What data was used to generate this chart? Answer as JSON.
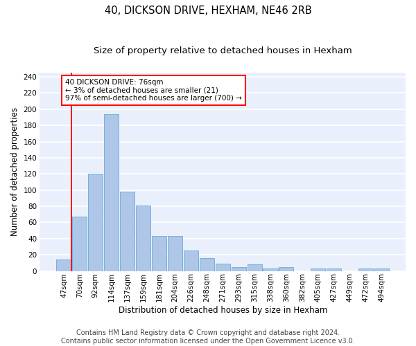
{
  "title1": "40, DICKSON DRIVE, HEXHAM, NE46 2RB",
  "title2": "Size of property relative to detached houses in Hexham",
  "xlabel": "Distribution of detached houses by size in Hexham",
  "ylabel": "Number of detached properties",
  "categories": [
    "47sqm",
    "70sqm",
    "92sqm",
    "114sqm",
    "137sqm",
    "159sqm",
    "181sqm",
    "204sqm",
    "226sqm",
    "248sqm",
    "271sqm",
    "293sqm",
    "315sqm",
    "338sqm",
    "360sqm",
    "382sqm",
    "405sqm",
    "427sqm",
    "449sqm",
    "472sqm",
    "494sqm"
  ],
  "values": [
    14,
    67,
    120,
    194,
    98,
    81,
    43,
    43,
    25,
    16,
    9,
    5,
    8,
    3,
    5,
    0,
    3,
    3,
    0,
    3,
    3
  ],
  "bar_color": "#aec6e8",
  "bar_edge_color": "#6aaad4",
  "annotation_box_text": "40 DICKSON DRIVE: 76sqm\n← 3% of detached houses are smaller (21)\n97% of semi-detached houses are larger (700) →",
  "annotation_box_color": "white",
  "annotation_box_edge_color": "red",
  "vline_color": "red",
  "vline_x": 1.0,
  "ylim": [
    0,
    245
  ],
  "yticks": [
    0,
    20,
    40,
    60,
    80,
    100,
    120,
    140,
    160,
    180,
    200,
    220,
    240
  ],
  "background_color": "#eaf0fb",
  "grid_color": "white",
  "footer1": "Contains HM Land Registry data © Crown copyright and database right 2024.",
  "footer2": "Contains public sector information licensed under the Open Government Licence v3.0.",
  "title1_fontsize": 10.5,
  "title2_fontsize": 9.5,
  "xlabel_fontsize": 8.5,
  "ylabel_fontsize": 8.5,
  "tick_fontsize": 7.5,
  "annotation_fontsize": 7.5,
  "footer_fontsize": 7.0
}
